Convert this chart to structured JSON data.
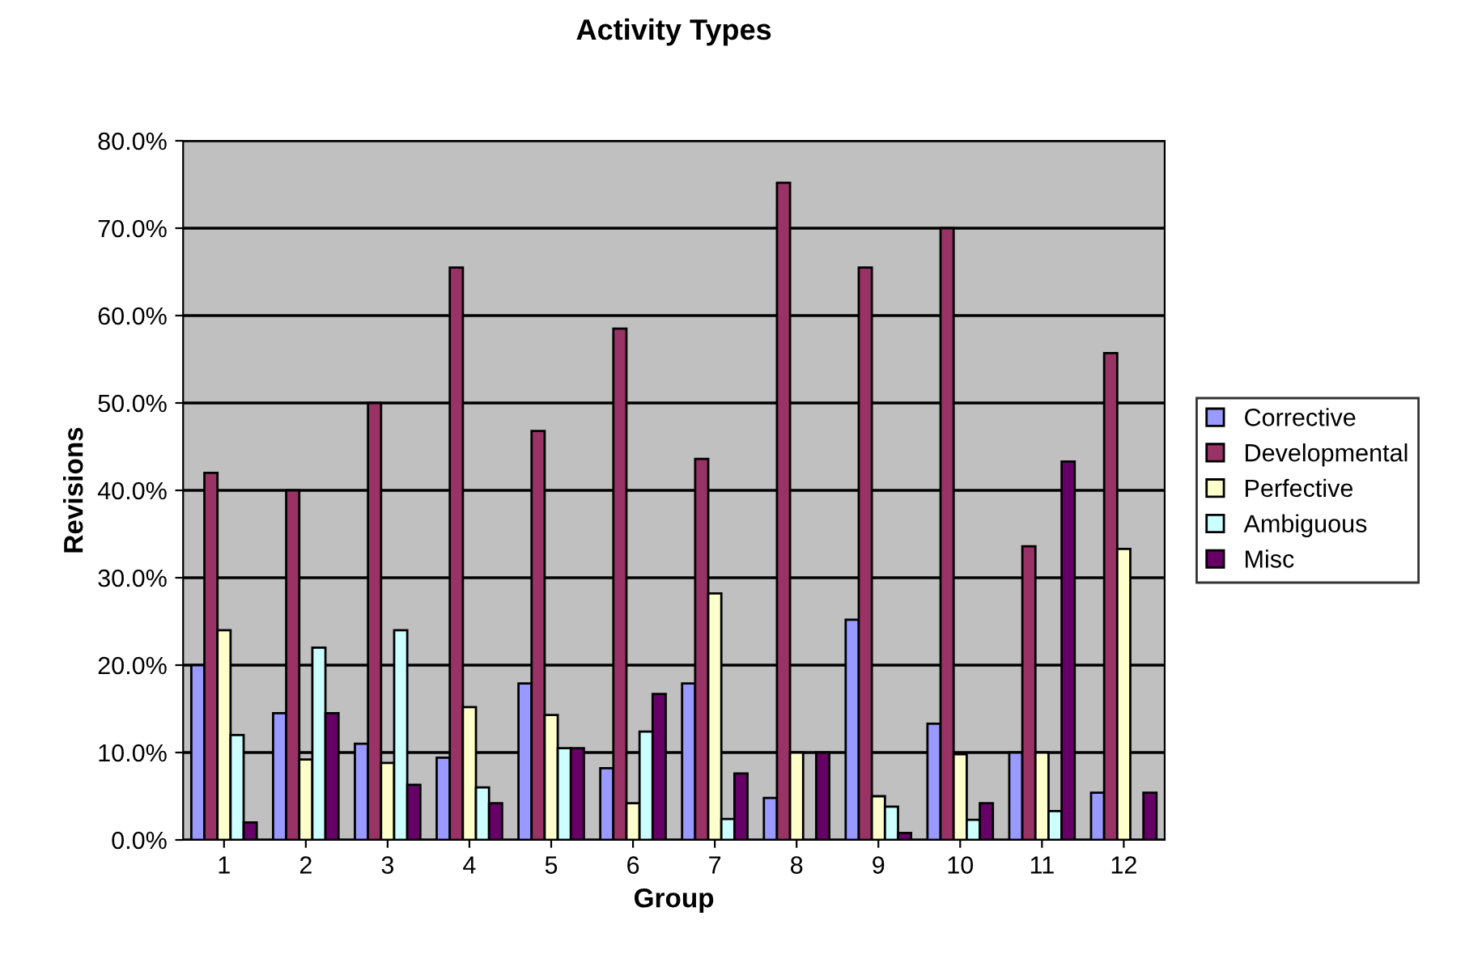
{
  "chart_data": {
    "type": "bar",
    "title": "Activity Types",
    "xlabel": "Group",
    "ylabel": "Revisions",
    "categories": [
      "1",
      "2",
      "3",
      "4",
      "5",
      "6",
      "7",
      "8",
      "9",
      "10",
      "11",
      "12"
    ],
    "series": [
      {
        "name": "Corrective",
        "color": "#9999ff",
        "values": [
          20,
          14.5,
          11,
          9.4,
          17.9,
          8.2,
          17.9,
          4.8,
          25.2,
          13.3,
          10,
          5.4
        ]
      },
      {
        "name": "Developmental",
        "color": "#993366",
        "values": [
          42,
          40,
          50,
          65.5,
          46.8,
          58.5,
          43.6,
          75.2,
          65.5,
          70,
          33.6,
          55.7
        ]
      },
      {
        "name": "Perfective",
        "color": "#ffffcc",
        "values": [
          24,
          9.2,
          8.8,
          15.2,
          14.3,
          4.2,
          28.2,
          10,
          5,
          9.8,
          10,
          33.3
        ]
      },
      {
        "name": "Ambiguous",
        "color": "#ccffff",
        "values": [
          12,
          22,
          24,
          6,
          10.5,
          12.4,
          2.4,
          null,
          3.8,
          2.3,
          3.3,
          null
        ]
      },
      {
        "name": "Misc",
        "color": "#660066",
        "values": [
          2,
          14.5,
          6.3,
          4.2,
          10.5,
          16.7,
          7.6,
          10,
          0.8,
          4.2,
          43.3,
          5.4
        ]
      }
    ],
    "ylim": [
      0,
      80
    ],
    "yticks": [
      {
        "value": 0,
        "label": "0.0%"
      },
      {
        "value": 10,
        "label": "10.0%"
      },
      {
        "value": 20,
        "label": "20.0%"
      },
      {
        "value": 30,
        "label": "30.0%"
      },
      {
        "value": 40,
        "label": "40.0%"
      },
      {
        "value": 50,
        "label": "50.0%"
      },
      {
        "value": 60,
        "label": "60.0%"
      },
      {
        "value": 70,
        "label": "70.0%"
      },
      {
        "value": 80,
        "label": "80.0%"
      }
    ],
    "grid": "y",
    "legend": "right"
  }
}
